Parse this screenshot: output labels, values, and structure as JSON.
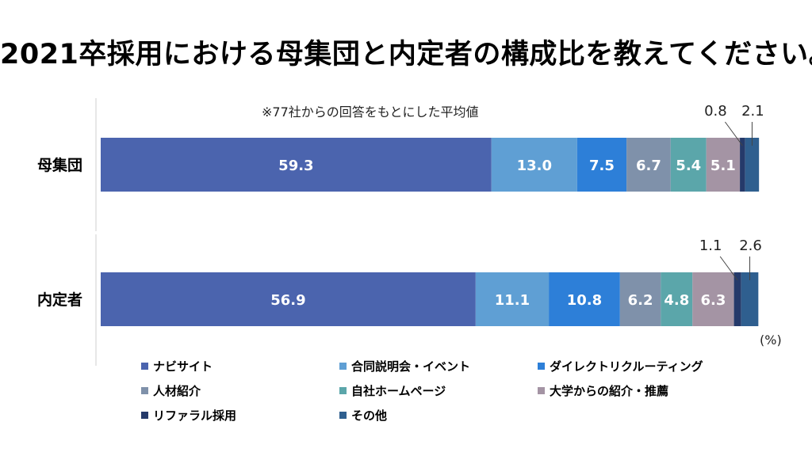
{
  "title": "2021卒採用における母集団と内定者の構成比を教えてください。",
  "chart_data": {
    "type": "bar",
    "orientation": "horizontal-stacked-100",
    "note": "※77社からの回答をもとにした平均値",
    "unit": "(%)",
    "categories": [
      "母集団",
      "内定者"
    ],
    "series": [
      {
        "name": "ナビサイト",
        "values": [
          59.3,
          56.9
        ],
        "color": "#4B64AE"
      },
      {
        "name": "合同説明会・イベント",
        "values": [
          13.0,
          11.1
        ],
        "color": "#5F9FD4"
      },
      {
        "name": "ダイレクトリクルーティング",
        "values": [
          7.5,
          10.8
        ],
        "color": "#2D7FD8"
      },
      {
        "name": "人材紹介",
        "values": [
          6.7,
          6.2
        ],
        "color": "#7F91AA"
      },
      {
        "name": "自社ホームページ",
        "values": [
          5.4,
          4.8
        ],
        "color": "#5BA6AA"
      },
      {
        "name": "大学からの紹介・推薦",
        "values": [
          5.1,
          6.3
        ],
        "color": "#A494A4"
      },
      {
        "name": "リファラル採用",
        "values": [
          0.8,
          1.1
        ],
        "color": "#253A6A"
      },
      {
        "name": "その他",
        "values": [
          2.1,
          2.6
        ],
        "color": "#2F5F8F"
      }
    ],
    "data_labels": [
      [
        "59.3",
        "13.0",
        "7.5",
        "6.7",
        "5.4",
        "5.1",
        "0.8",
        "2.1"
      ],
      [
        "56.9",
        "11.1",
        "10.8",
        "6.2",
        "4.8",
        "6.3",
        "1.1",
        "2.6"
      ]
    ],
    "xlim": [
      0,
      100
    ],
    "legend_position": "bottom"
  }
}
